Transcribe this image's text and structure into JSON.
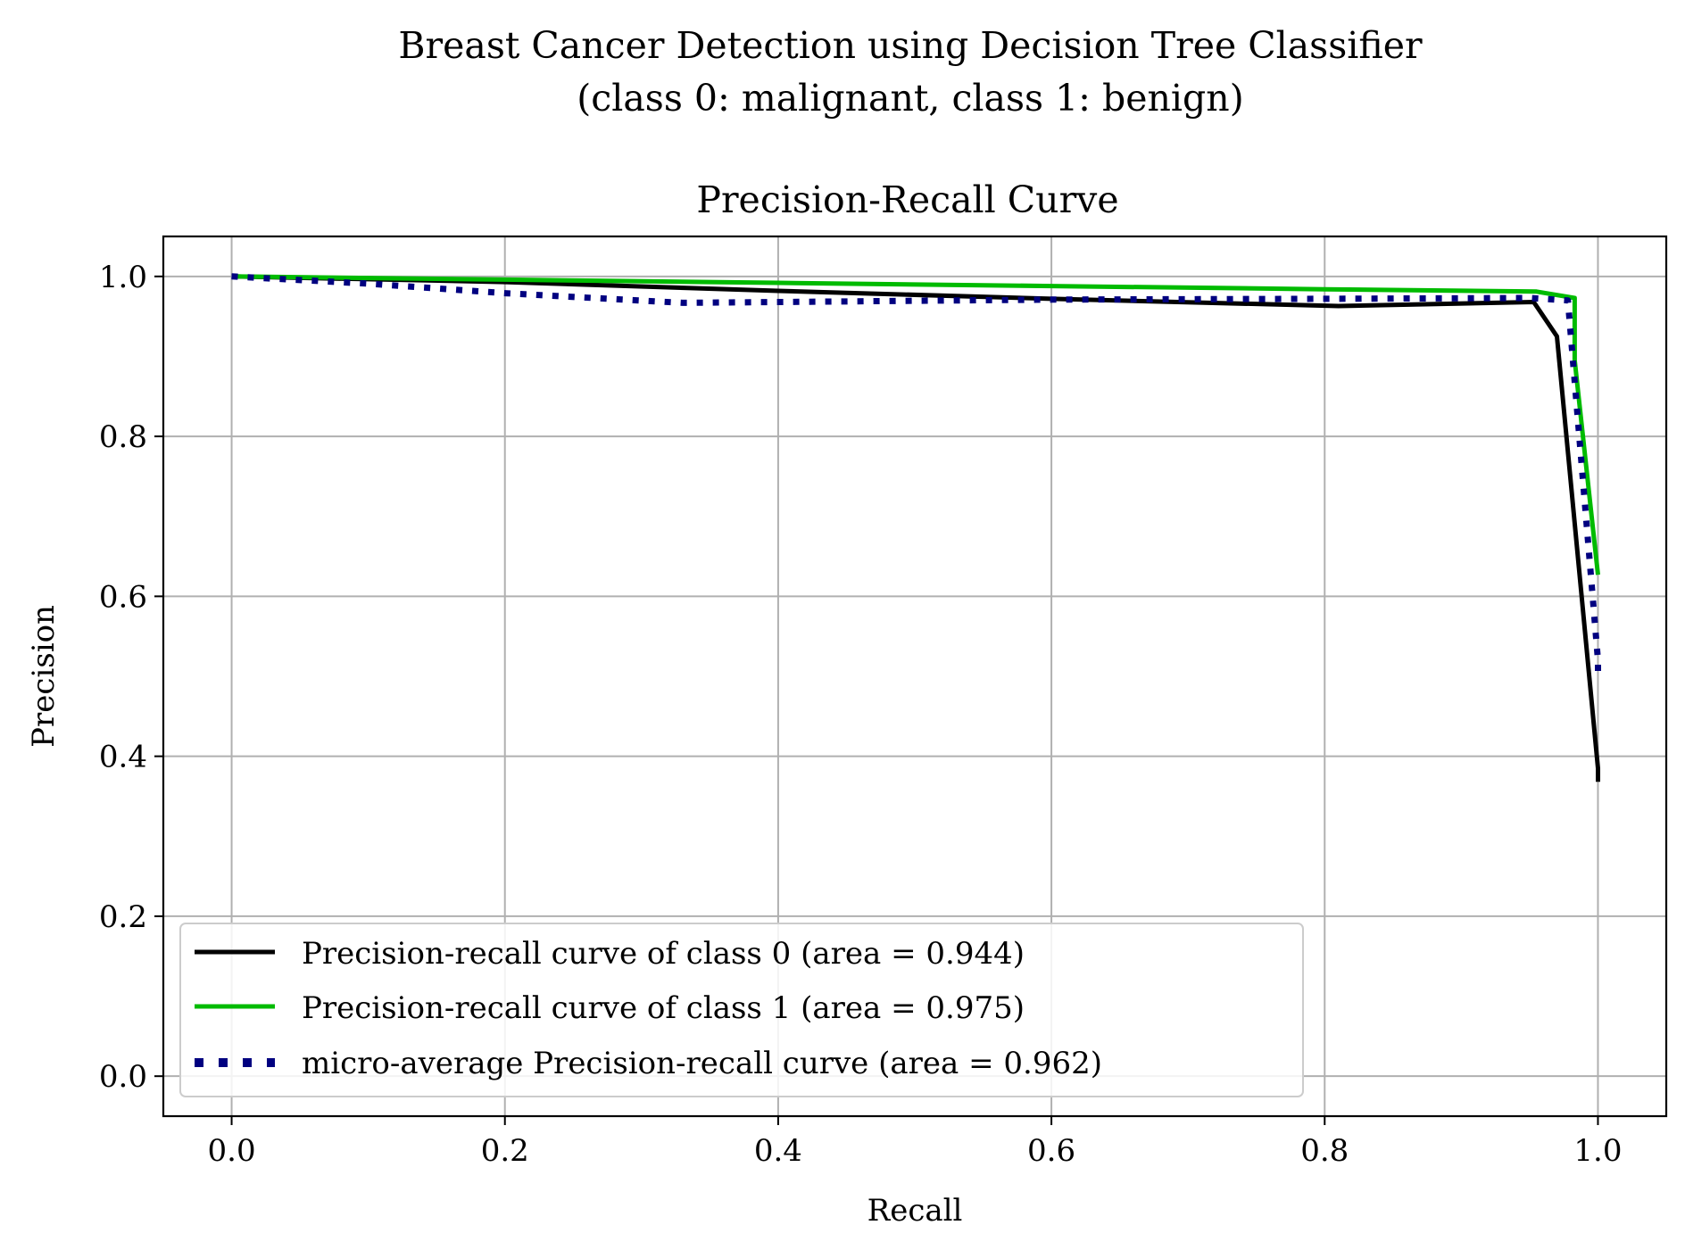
{
  "chart_data": {
    "type": "line",
    "suptitle_line1": "Breast Cancer Detection using Decision Tree Classifier",
    "suptitle_line2": "(class 0: malignant, class 1: benign)",
    "title": "Precision-Recall Curve",
    "xlabel": "Recall",
    "ylabel": "Precision",
    "xlim": [
      -0.05,
      1.05
    ],
    "ylim": [
      -0.05,
      1.05
    ],
    "xticks": [
      0.0,
      0.2,
      0.4,
      0.6,
      0.8,
      1.0
    ],
    "xtick_labels": [
      "0.0",
      "0.2",
      "0.4",
      "0.6",
      "0.8",
      "1.0"
    ],
    "yticks": [
      0.0,
      0.2,
      0.4,
      0.6,
      0.8,
      1.0
    ],
    "ytick_labels": [
      "0.0",
      "0.2",
      "0.4",
      "0.6",
      "0.8",
      "1.0"
    ],
    "grid": true,
    "legend_position": "lower-left",
    "series": [
      {
        "name": "Precision-recall curve of class 0 (area = 0.944)",
        "color": "#000000",
        "style": "solid",
        "x": [
          0.0,
          0.2,
          0.4,
          0.6,
          0.81,
          0.953,
          0.97,
          1.0,
          1.0
        ],
        "y": [
          1.0,
          0.993,
          0.982,
          0.972,
          0.963,
          0.968,
          0.925,
          0.385,
          0.368
        ]
      },
      {
        "name": "Precision-recall curve of class 1 (area = 0.975)",
        "color": "#00bb00",
        "style": "solid",
        "x": [
          0.0,
          0.2,
          0.4,
          0.6,
          0.8,
          0.955,
          0.983,
          0.983,
          0.983,
          1.0
        ],
        "y": [
          1.0,
          0.996,
          0.992,
          0.988,
          0.984,
          0.981,
          0.973,
          0.93,
          0.895,
          0.627
        ]
      },
      {
        "name": "micro-average Precision-recall curve (area = 0.962)",
        "color": "#000080",
        "style": "dotted",
        "x": [
          0.0,
          0.1,
          0.2,
          0.33,
          0.4,
          0.6,
          0.8,
          0.95,
          0.978,
          1.0,
          1.0
        ],
        "y": [
          1.0,
          0.991,
          0.979,
          0.967,
          0.968,
          0.971,
          0.972,
          0.973,
          0.97,
          0.52,
          0.5
        ]
      }
    ]
  }
}
